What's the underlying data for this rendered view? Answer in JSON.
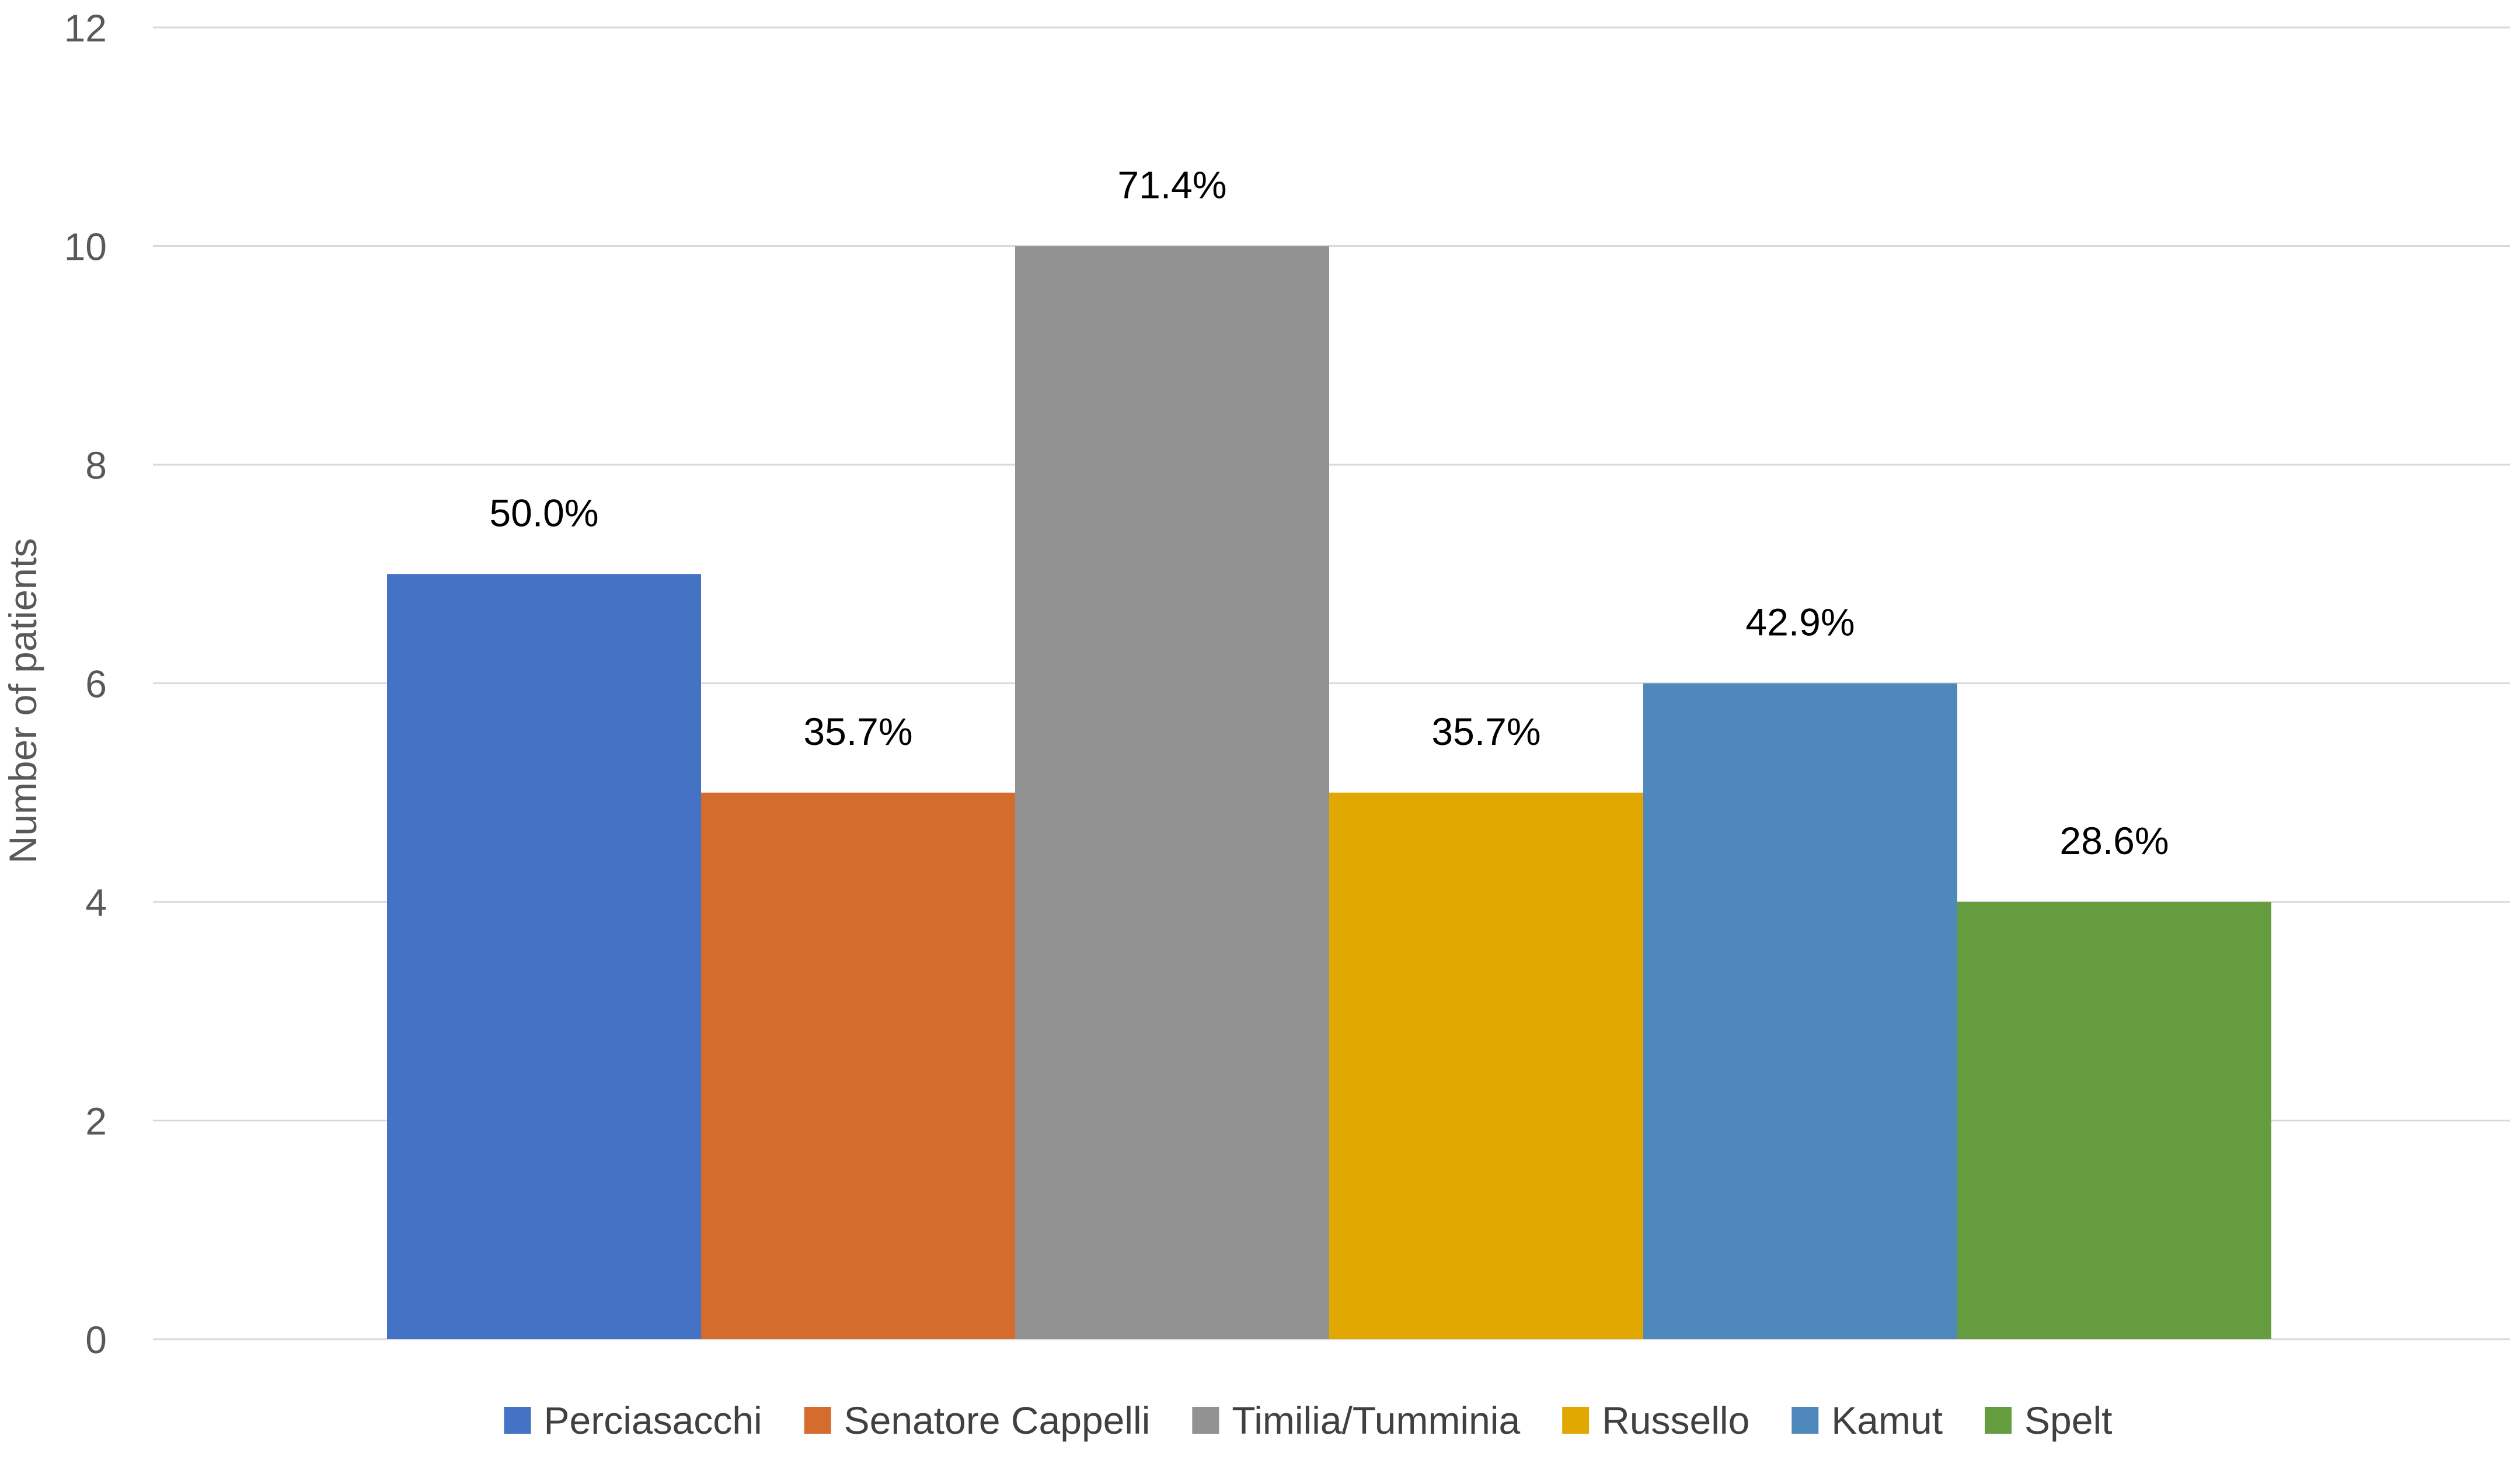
{
  "chart_data": {
    "type": "bar",
    "title": "",
    "xlabel": "",
    "ylabel": "Number of patients",
    "ylim": [
      0,
      12
    ],
    "yticks": [
      0,
      2,
      4,
      6,
      8,
      10,
      12
    ],
    "grid": true,
    "legend_position": "bottom",
    "categories": [
      "Perciasacchi",
      "Senatore Cappelli",
      "Timilia/Tumminia",
      "Russello",
      "Kamut",
      "Spelt"
    ],
    "values": [
      7,
      5,
      10,
      5,
      6,
      4
    ],
    "data_labels": [
      "50.0%",
      "35.7%",
      "71.4%",
      "35.7%",
      "42.9%",
      "28.6%"
    ],
    "colors": [
      "#4472C4",
      "#D36C2C",
      "#929292",
      "#E0A800",
      "#4F88BA",
      "#659C3F"
    ],
    "series": [
      {
        "name": "Perciasacchi",
        "value": 7,
        "label": "50.0%",
        "color": "#4472C4"
      },
      {
        "name": "Senatore Cappelli",
        "value": 5,
        "label": "35.7%",
        "color": "#D36C2C"
      },
      {
        "name": "Timilia/Tumminia",
        "value": 10,
        "label": "71.4%",
        "color": "#929292"
      },
      {
        "name": "Russello",
        "value": 5,
        "label": "35.7%",
        "color": "#E0A800"
      },
      {
        "name": "Kamut",
        "value": 6,
        "label": "42.9%",
        "color": "#4F88BA"
      },
      {
        "name": "Spelt",
        "value": 4,
        "label": "28.6%",
        "color": "#659C3F"
      }
    ]
  }
}
